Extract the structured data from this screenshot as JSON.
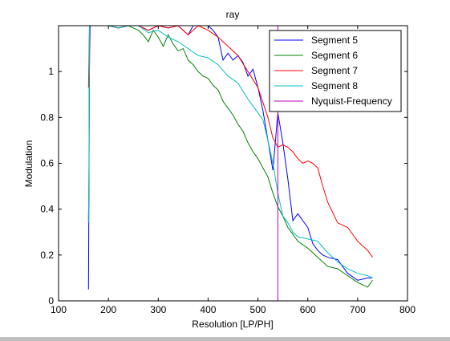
{
  "chart_data": {
    "type": "line",
    "title": "ray",
    "xlabel": "Resolution [LP/PH]",
    "ylabel": "Modulation",
    "xlim": [
      100,
      800
    ],
    "ylim": [
      0,
      1.2
    ],
    "xticks": [
      "100",
      "200",
      "300",
      "400",
      "500",
      "600",
      "700",
      "800"
    ],
    "xtick_values": [
      100,
      200,
      300,
      400,
      500,
      600,
      700,
      800
    ],
    "yticks": [
      "0",
      "0.2",
      "0.4",
      "0.6",
      "0.8",
      "1"
    ],
    "ytick_values": [
      0,
      0.2,
      0.4,
      0.6,
      0.8,
      1.0
    ],
    "grid": false,
    "legend_position": "top-right",
    "series": [
      {
        "name": "Segment 5",
        "color": "#0000ff",
        "x": [
          160,
          161,
          162,
          163,
          164,
          165,
          166,
          170,
          180,
          200,
          220,
          240,
          260,
          280,
          300,
          320,
          340,
          360,
          370,
          380,
          390,
          400,
          410,
          420,
          430,
          440,
          450,
          460,
          470,
          480,
          490,
          500,
          510,
          520,
          530,
          540,
          550,
          560,
          570,
          580,
          590,
          600,
          610,
          620,
          630,
          640,
          660,
          680,
          700,
          720,
          730
        ],
        "y": [
          0.05,
          0.5,
          1.0,
          1.2,
          1.2,
          1.2,
          1.2,
          1.2,
          1.2,
          1.2,
          1.19,
          1.2,
          1.2,
          1.18,
          1.2,
          1.19,
          1.2,
          1.16,
          1.2,
          1.22,
          1.22,
          1.2,
          1.18,
          1.15,
          1.05,
          1.08,
          1.05,
          1.07,
          1.04,
          0.98,
          1.01,
          0.93,
          0.83,
          0.7,
          0.57,
          0.82,
          0.69,
          0.53,
          0.35,
          0.38,
          0.35,
          0.32,
          0.25,
          0.22,
          0.2,
          0.19,
          0.18,
          0.12,
          0.09,
          0.1,
          0.1
        ]
      },
      {
        "name": "Segment 6",
        "color": "#008000",
        "x": [
          160,
          161,
          162,
          163,
          164,
          165,
          166,
          170,
          180,
          200,
          220,
          240,
          260,
          270,
          280,
          290,
          300,
          310,
          320,
          330,
          340,
          350,
          360,
          370,
          380,
          390,
          400,
          410,
          420,
          430,
          440,
          450,
          460,
          470,
          480,
          490,
          500,
          510,
          520,
          530,
          540,
          550,
          560,
          580,
          600,
          620,
          640,
          660,
          680,
          700,
          720,
          730
        ],
        "y": [
          0.35,
          0.5,
          1.2,
          1.2,
          1.2,
          1.2,
          1.2,
          1.2,
          1.2,
          1.2,
          1.19,
          1.2,
          1.18,
          1.16,
          1.13,
          1.18,
          1.15,
          1.11,
          1.16,
          1.12,
          1.09,
          1.1,
          1.05,
          1.03,
          1.0,
          0.98,
          0.97,
          0.94,
          0.92,
          0.87,
          0.84,
          0.81,
          0.77,
          0.74,
          0.69,
          0.65,
          0.62,
          0.58,
          0.54,
          0.47,
          0.41,
          0.37,
          0.32,
          0.26,
          0.23,
          0.19,
          0.15,
          0.14,
          0.11,
          0.08,
          0.06,
          0.09
        ]
      },
      {
        "name": "Segment 7",
        "color": "#ff0000",
        "x": [
          160,
          161,
          162,
          163,
          164,
          165,
          166,
          170,
          180,
          200,
          220,
          240,
          260,
          280,
          300,
          320,
          340,
          360,
          380,
          400,
          420,
          440,
          460,
          480,
          500,
          520,
          530,
          540,
          550,
          560,
          570,
          580,
          590,
          600,
          610,
          620,
          630,
          640,
          660,
          680,
          700,
          720,
          730
        ],
        "y": [
          0.93,
          1.05,
          1.2,
          1.2,
          1.2,
          1.2,
          1.2,
          1.2,
          1.2,
          1.2,
          1.19,
          1.2,
          1.2,
          1.18,
          1.2,
          1.19,
          1.2,
          1.16,
          1.2,
          1.18,
          1.15,
          1.11,
          1.07,
          1.0,
          0.93,
          0.8,
          0.71,
          0.67,
          0.68,
          0.67,
          0.65,
          0.62,
          0.6,
          0.61,
          0.6,
          0.58,
          0.5,
          0.43,
          0.34,
          0.32,
          0.26,
          0.22,
          0.19
        ]
      },
      {
        "name": "Segment 8",
        "color": "#00bfbf",
        "x": [
          160,
          161,
          162,
          163,
          164,
          165,
          166,
          170,
          180,
          200,
          220,
          240,
          260,
          280,
          300,
          320,
          340,
          360,
          380,
          400,
          420,
          440,
          460,
          480,
          500,
          510,
          520,
          530,
          540,
          550,
          560,
          570,
          580,
          600,
          620,
          640,
          660,
          680,
          700,
          720,
          730
        ],
        "y": [
          0.34,
          0.6,
          1.2,
          1.2,
          1.2,
          1.2,
          1.2,
          1.2,
          1.2,
          1.2,
          1.19,
          1.2,
          1.2,
          1.17,
          1.18,
          1.15,
          1.13,
          1.1,
          1.07,
          1.06,
          1.03,
          0.98,
          0.95,
          0.88,
          0.82,
          0.79,
          0.7,
          0.6,
          0.47,
          0.37,
          0.34,
          0.3,
          0.28,
          0.27,
          0.26,
          0.21,
          0.17,
          0.14,
          0.12,
          0.11,
          0.1
        ]
      },
      {
        "name": "Nyquist-Frequency",
        "color": "#bf00bf",
        "x": [
          540,
          540
        ],
        "y": [
          0,
          1.2
        ]
      }
    ]
  }
}
